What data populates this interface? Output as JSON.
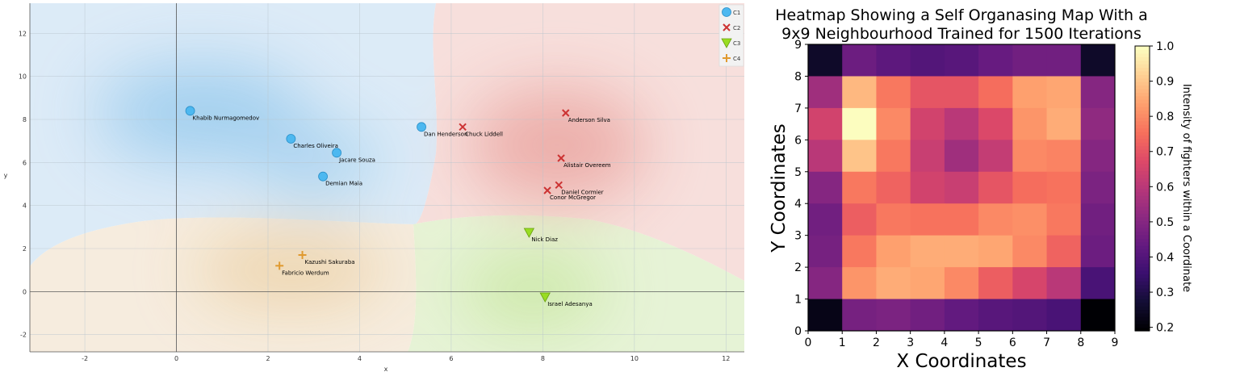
{
  "chart_data": [
    {
      "type": "scatter",
      "title": "",
      "xlabel": "x",
      "ylabel": "y",
      "xlim": [
        -3.2,
        12.4
      ],
      "ylim": [
        -2.8,
        13.4
      ],
      "xticks": [
        -2,
        0,
        2,
        4,
        6,
        8,
        10,
        12
      ],
      "yticks": [
        -2,
        0,
        2,
        4,
        6,
        8,
        10,
        12
      ],
      "grid": true,
      "legend_position": "top-right",
      "series": [
        {
          "name": "C1",
          "marker": "circle",
          "color": "#4db8f0",
          "points": [
            {
              "x": 0.3,
              "y": 8.4,
              "label": "Khabib Nurmagomedov"
            },
            {
              "x": 2.5,
              "y": 7.1,
              "label": "Charles Oliveira"
            },
            {
              "x": 3.5,
              "y": 6.45,
              "label": "Jacare Souza"
            },
            {
              "x": 3.2,
              "y": 5.35,
              "label": "Demian Maia"
            },
            {
              "x": 5.35,
              "y": 7.65,
              "label": "Dan Henderson"
            }
          ]
        },
        {
          "name": "C2",
          "marker": "x",
          "color": "#cc3333",
          "points": [
            {
              "x": 6.25,
              "y": 7.65,
              "label": "Chuck Liddell"
            },
            {
              "x": 8.5,
              "y": 8.3,
              "label": "Anderson Silva"
            },
            {
              "x": 8.4,
              "y": 6.2,
              "label": "Alistair Overeem"
            },
            {
              "x": 8.35,
              "y": 4.95,
              "label": "Daniel Cormier"
            },
            {
              "x": 8.1,
              "y": 4.7,
              "label": "Conor McGregor"
            }
          ]
        },
        {
          "name": "C3",
          "marker": "triangle-down",
          "color": "#99dd22",
          "points": [
            {
              "x": 7.7,
              "y": 2.75,
              "label": "Nick Diaz"
            },
            {
              "x": 8.05,
              "y": -0.25,
              "label": "Israel Adesanya"
            }
          ]
        },
        {
          "name": "C4",
          "marker": "plus",
          "color": "#e09a30",
          "points": [
            {
              "x": 2.75,
              "y": 1.7,
              "label": "Kazushi Sakuraba"
            },
            {
              "x": 2.25,
              "y": 1.2,
              "label": "Fabricio Werdum"
            }
          ]
        }
      ]
    },
    {
      "type": "heatmap",
      "title_lines": [
        "Heatmap Showing a Self Organasing Map With a",
        "9x9 Neighbourhood Trained for 1500 Iterations"
      ],
      "xlabel": "X Coordinates",
      "ylabel": "Y Coordinates",
      "xticks": [
        0,
        1,
        2,
        3,
        4,
        5,
        6,
        7,
        8,
        9
      ],
      "yticks": [
        0,
        1,
        2,
        3,
        4,
        5,
        6,
        7,
        8,
        9
      ],
      "colorbar_label": "Intensity of fighters within a Coordinate",
      "colorbar_ticks": [
        0.2,
        0.3,
        0.4,
        0.5,
        0.6,
        0.7,
        0.8,
        0.9,
        1.0
      ],
      "vmin": 0.19,
      "vmax": 1.0,
      "colormap": "magma",
      "rows_top_to_bottom": [
        [
          0.25,
          0.45,
          0.42,
          0.4,
          0.41,
          0.44,
          0.46,
          0.46,
          0.25
        ],
        [
          0.55,
          0.88,
          0.77,
          0.7,
          0.7,
          0.75,
          0.84,
          0.85,
          0.5
        ],
        [
          0.65,
          1.0,
          0.8,
          0.65,
          0.6,
          0.67,
          0.82,
          0.86,
          0.52
        ],
        [
          0.6,
          0.9,
          0.77,
          0.63,
          0.55,
          0.62,
          0.8,
          0.79,
          0.5
        ],
        [
          0.5,
          0.77,
          0.73,
          0.65,
          0.63,
          0.7,
          0.75,
          0.76,
          0.48
        ],
        [
          0.46,
          0.72,
          0.77,
          0.76,
          0.76,
          0.8,
          0.81,
          0.77,
          0.46
        ],
        [
          0.47,
          0.77,
          0.84,
          0.86,
          0.86,
          0.85,
          0.8,
          0.73,
          0.45
        ],
        [
          0.5,
          0.82,
          0.86,
          0.85,
          0.8,
          0.72,
          0.66,
          0.6,
          0.38
        ],
        [
          0.22,
          0.47,
          0.48,
          0.46,
          0.43,
          0.41,
          0.4,
          0.38,
          0.19
        ]
      ]
    }
  ]
}
